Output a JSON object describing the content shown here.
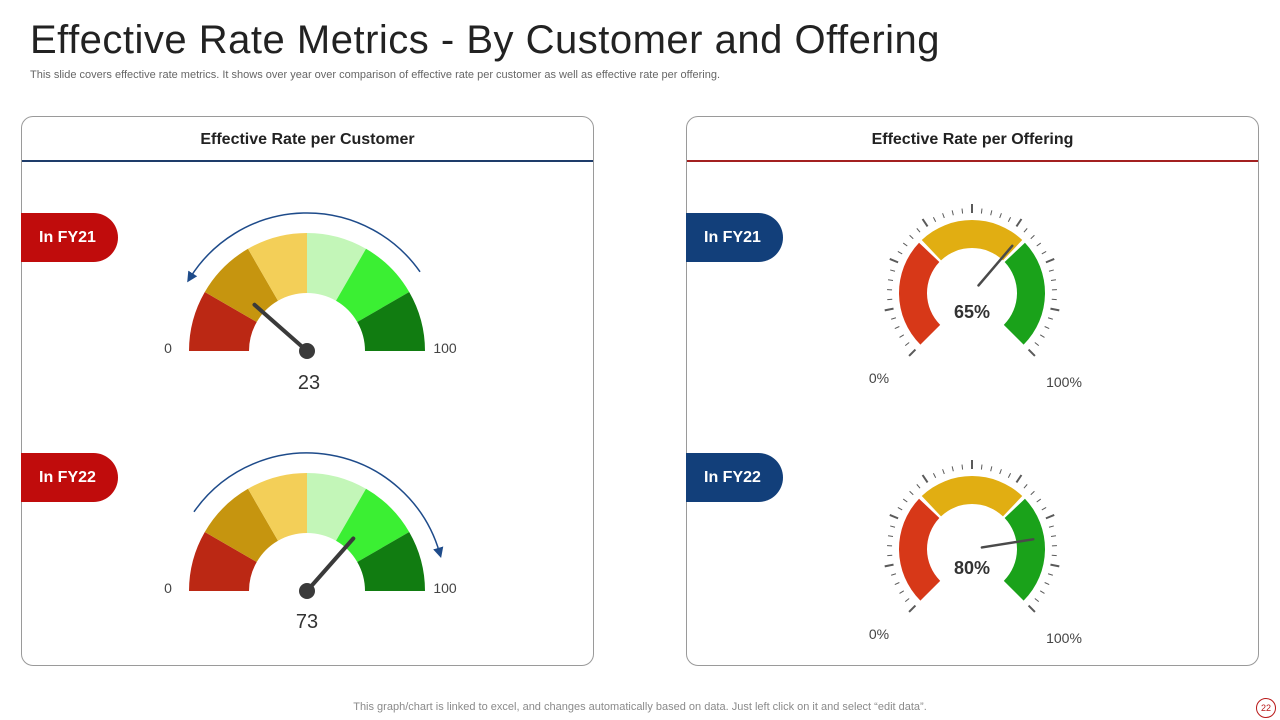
{
  "header": {
    "title": "Effective Rate Metrics - By Customer and Offering",
    "subtitle": "This slide covers effective rate metrics. It shows over year over comparison of effective rate per customer as well as effective rate per offering."
  },
  "panels": {
    "customer": {
      "title": "Effective  Rate per Customer"
    },
    "offering": {
      "title": "Effective  Rate per Offering"
    }
  },
  "colors": {
    "pill_red": "#c00c0c",
    "pill_blue": "#123f7a",
    "customer_segments": [
      "#bb2814",
      "#c6950f",
      "#f3cf58",
      "#c3f6b8",
      "#3bef33",
      "#117c11"
    ],
    "offering_segments": [
      "#d73818",
      "#e1ae12",
      "#1aa21a"
    ]
  },
  "chart_data": [
    {
      "type": "gauge",
      "name": "customer-fy21",
      "label": "In FY21",
      "value": 23,
      "value_label": "23",
      "min": 0,
      "max": 100,
      "min_label": "0",
      "max_label": "100",
      "segments": 6,
      "arrow_direction": "counterclockwise"
    },
    {
      "type": "gauge",
      "name": "customer-fy22",
      "label": "In FY22",
      "value": 73,
      "value_label": "73",
      "min": 0,
      "max": 100,
      "min_label": "0",
      "max_label": "100",
      "segments": 6,
      "arrow_direction": "clockwise"
    },
    {
      "type": "gauge",
      "name": "offering-fy21",
      "label": "In FY21",
      "value": 65,
      "value_label": "65%",
      "min": 0,
      "max": 100,
      "min_label": "0%",
      "max_label": "100%",
      "segments": 3
    },
    {
      "type": "gauge",
      "name": "offering-fy22",
      "label": "In FY22",
      "value": 80,
      "value_label": "80%",
      "min": 0,
      "max": 100,
      "min_label": "0%",
      "max_label": "100%",
      "segments": 3
    }
  ],
  "footer": {
    "note": "This graph/chart is linked to excel,  and changes automatically based on data. Just left click on it and select “edit data”.",
    "page_number": "22"
  }
}
